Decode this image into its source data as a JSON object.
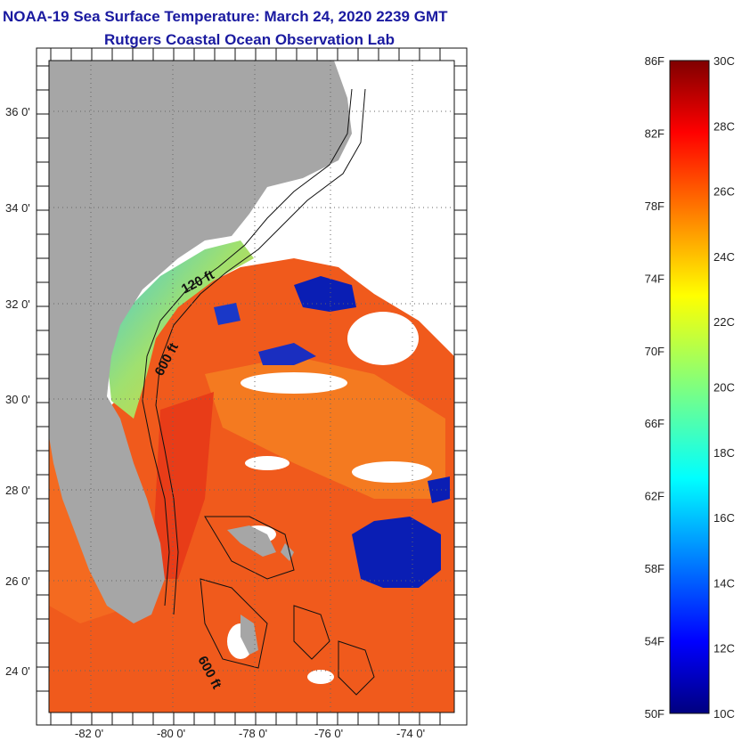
{
  "title": {
    "line1": "NOAA-19 Sea Surface Temperature:  March 24, 2020 2239 GMT",
    "line2": "Rutgers Coastal Ocean Observation Lab"
  },
  "map": {
    "lat_ticks": [
      "36 0'",
      "34 0'",
      "32 0'",
      "30 0'",
      "28 0'",
      "26 0'",
      "24 0'"
    ],
    "lon_ticks": [
      "-82 0'",
      "-80 0'",
      "-78 0'",
      "-76 0'",
      "-74 0'"
    ],
    "contour_labels": [
      "120 ft",
      "600 ft",
      "600 ft"
    ],
    "colors": {
      "land": "#a6a6a6",
      "warm_water": "#f05a1c",
      "cold_water": "#0a1eb4",
      "clouds": "#ffffff"
    }
  },
  "colorbar": {
    "f_labels": [
      "86F",
      "82F",
      "78F",
      "74F",
      "70F",
      "66F",
      "62F",
      "58F",
      "54F",
      "50F"
    ],
    "c_labels": [
      "30C",
      "28C",
      "26C",
      "24C",
      "22C",
      "20C",
      "18C",
      "16C",
      "14C",
      "12C",
      "10C"
    ],
    "range_c": [
      10,
      30
    ],
    "range_f": [
      50,
      86
    ],
    "colormap": "jet"
  }
}
